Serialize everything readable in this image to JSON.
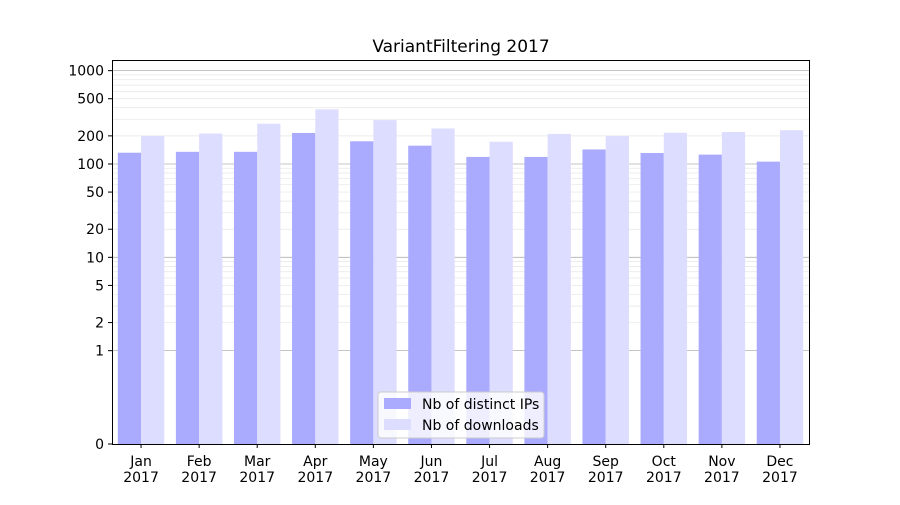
{
  "chart_data": {
    "type": "bar",
    "title": "VariantFiltering 2017",
    "xlabel": "",
    "ylabel": "",
    "y_scale": "symlog",
    "ylim": [
      0,
      1300
    ],
    "y_ticks": [
      {
        "value": 0,
        "label": "0"
      },
      {
        "value": 1,
        "label": "1"
      },
      {
        "value": 2,
        "label": "2"
      },
      {
        "value": 5,
        "label": "5"
      },
      {
        "value": 10,
        "label": "10"
      },
      {
        "value": 20,
        "label": "20"
      },
      {
        "value": 50,
        "label": "50"
      },
      {
        "value": 100,
        "label": "100"
      },
      {
        "value": 200,
        "label": "200"
      },
      {
        "value": 500,
        "label": "500"
      },
      {
        "value": 1000,
        "label": "1000"
      }
    ],
    "categories": [
      {
        "month": "Jan",
        "year": "2017"
      },
      {
        "month": "Feb",
        "year": "2017"
      },
      {
        "month": "Mar",
        "year": "2017"
      },
      {
        "month": "Apr",
        "year": "2017"
      },
      {
        "month": "May",
        "year": "2017"
      },
      {
        "month": "Jun",
        "year": "2017"
      },
      {
        "month": "Jul",
        "year": "2017"
      },
      {
        "month": "Aug",
        "year": "2017"
      },
      {
        "month": "Sep",
        "year": "2017"
      },
      {
        "month": "Oct",
        "year": "2017"
      },
      {
        "month": "Nov",
        "year": "2017"
      },
      {
        "month": "Dec",
        "year": "2017"
      }
    ],
    "series": [
      {
        "name": "Nb of distinct IPs",
        "color": "#aaaaff",
        "values": [
          132,
          135,
          135,
          215,
          175,
          157,
          119,
          119,
          143,
          131,
          126,
          106
        ]
      },
      {
        "name": "Nb of downloads",
        "color": "#ddddff",
        "values": [
          200,
          212,
          270,
          385,
          295,
          240,
          173,
          210,
          199,
          216,
          220,
          230
        ]
      }
    ],
    "grid": true,
    "legend_position": "bottom-center"
  }
}
